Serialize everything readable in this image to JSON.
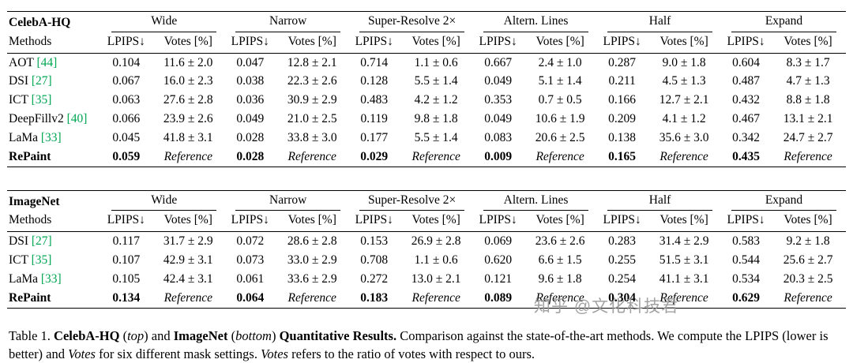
{
  "colors": {
    "citation_green": "#00A651",
    "text": "#000000",
    "rule": "#000000",
    "watermark_gray": "#9b9b9b",
    "background": "#ffffff"
  },
  "subheaders": [
    "LPIPS↓",
    "Votes [%]"
  ],
  "reference_text": "Reference",
  "tables": [
    {
      "dataset": "CelebA-HQ",
      "methods_label": "Methods",
      "groups": [
        "Wide",
        "Narrow",
        "Super-Resolve 2×",
        "Altern. Lines",
        "Half",
        "Expand"
      ],
      "rows": [
        {
          "method": "AOT",
          "cite": "[44]",
          "bold": false,
          "cells": [
            "0.104",
            "11.6 ± 2.0",
            "0.047",
            "12.8 ± 2.1",
            "0.714",
            "1.1 ± 0.6",
            "0.667",
            "2.4 ± 1.0",
            "0.287",
            "9.0 ± 1.8",
            "0.604",
            "8.3 ± 1.7"
          ]
        },
        {
          "method": "DSI",
          "cite": "[27]",
          "bold": false,
          "cells": [
            "0.067",
            "16.0 ± 2.3",
            "0.038",
            "22.3 ± 2.6",
            "0.128",
            "5.5 ± 1.4",
            "0.049",
            "5.1 ± 1.4",
            "0.211",
            "4.5 ± 1.3",
            "0.487",
            "4.7 ± 1.3"
          ]
        },
        {
          "method": "ICT",
          "cite": "[35]",
          "bold": false,
          "cells": [
            "0.063",
            "27.6 ± 2.8",
            "0.036",
            "30.9 ± 2.9",
            "0.483",
            "4.2 ± 1.2",
            "0.353",
            "0.7 ± 0.5",
            "0.166",
            "12.7 ± 2.1",
            "0.432",
            "8.8 ± 1.8"
          ]
        },
        {
          "method": "DeepFillv2",
          "cite": "[40]",
          "bold": false,
          "cells": [
            "0.066",
            "23.9 ± 2.6",
            "0.049",
            "21.0 ± 2.5",
            "0.119",
            "9.8 ± 1.8",
            "0.049",
            "10.6 ± 1.9",
            "0.209",
            "4.1 ± 1.2",
            "0.467",
            "13.1 ± 2.1"
          ]
        },
        {
          "method": "LaMa",
          "cite": "[33]",
          "bold": false,
          "cells": [
            "0.045",
            "41.8 ± 3.1",
            "0.028",
            "33.8 ± 3.0",
            "0.177",
            "5.5 ± 1.4",
            "0.083",
            "20.6 ± 2.5",
            "0.138",
            "35.6 ± 3.0",
            "0.342",
            "24.7 ± 2.7"
          ]
        },
        {
          "method": "RePaint",
          "cite": "",
          "bold": true,
          "cells": [
            "0.059",
            "Reference",
            "0.028",
            "Reference",
            "0.029",
            "Reference",
            "0.009",
            "Reference",
            "0.165",
            "Reference",
            "0.435",
            "Reference"
          ]
        }
      ]
    },
    {
      "dataset": "ImageNet",
      "methods_label": "Methods",
      "groups": [
        "Wide",
        "Narrow",
        "Super-Resolve 2×",
        "Altern. Lines",
        "Half",
        "Expand"
      ],
      "rows": [
        {
          "method": "DSI",
          "cite": "[27]",
          "bold": false,
          "cells": [
            "0.117",
            "31.7 ± 2.9",
            "0.072",
            "28.6 ± 2.8",
            "0.153",
            "26.9 ± 2.8",
            "0.069",
            "23.6 ± 2.6",
            "0.283",
            "31.4 ± 2.9",
            "0.583",
            "9.2 ± 1.8"
          ]
        },
        {
          "method": "ICT",
          "cite": "[35]",
          "bold": false,
          "cells": [
            "0.107",
            "42.9 ± 3.1",
            "0.073",
            "33.0 ± 2.9",
            "0.708",
            "1.1 ± 0.6",
            "0.620",
            "6.6 ± 1.5",
            "0.255",
            "51.5 ± 3.1",
            "0.544",
            "25.6 ± 2.7"
          ]
        },
        {
          "method": "LaMa",
          "cite": "[33]",
          "bold": false,
          "cells": [
            "0.105",
            "42.4 ± 3.1",
            "0.061",
            "33.6 ± 2.9",
            "0.272",
            "13.0 ± 2.1",
            "0.121",
            "9.6 ± 1.8",
            "0.254",
            "41.1 ± 3.1",
            "0.534",
            "20.3 ± 2.5"
          ]
        },
        {
          "method": "RePaint",
          "cite": "",
          "bold": true,
          "cells": [
            "0.134",
            "Reference",
            "0.064",
            "Reference",
            "0.183",
            "Reference",
            "0.089",
            "Reference",
            "0.304",
            "Reference",
            "0.629",
            "Reference"
          ]
        }
      ]
    }
  ],
  "caption": {
    "segments": [
      {
        "text": "Table 1. ",
        "style": "normal"
      },
      {
        "text": "CelebA-HQ",
        "style": "bold"
      },
      {
        "text": " (",
        "style": "normal"
      },
      {
        "text": "top",
        "style": "italic"
      },
      {
        "text": ") and ",
        "style": "normal"
      },
      {
        "text": "ImageNet",
        "style": "bold"
      },
      {
        "text": " (",
        "style": "normal"
      },
      {
        "text": "bottom",
        "style": "italic"
      },
      {
        "text": ") ",
        "style": "normal"
      },
      {
        "text": "Quantitative Results.",
        "style": "bold"
      },
      {
        "text": " Comparison against the state-of-the-art methods. We compute the LPIPS (lower is better) and ",
        "style": "normal"
      },
      {
        "text": "Votes",
        "style": "italic"
      },
      {
        "text": " for six different mask settings. ",
        "style": "normal"
      },
      {
        "text": "Votes",
        "style": "italic"
      },
      {
        "text": " refers to the ratio of votes with respect to ours.",
        "style": "normal"
      }
    ]
  },
  "watermark": {
    "text": "知乎 @文化科技君"
  }
}
